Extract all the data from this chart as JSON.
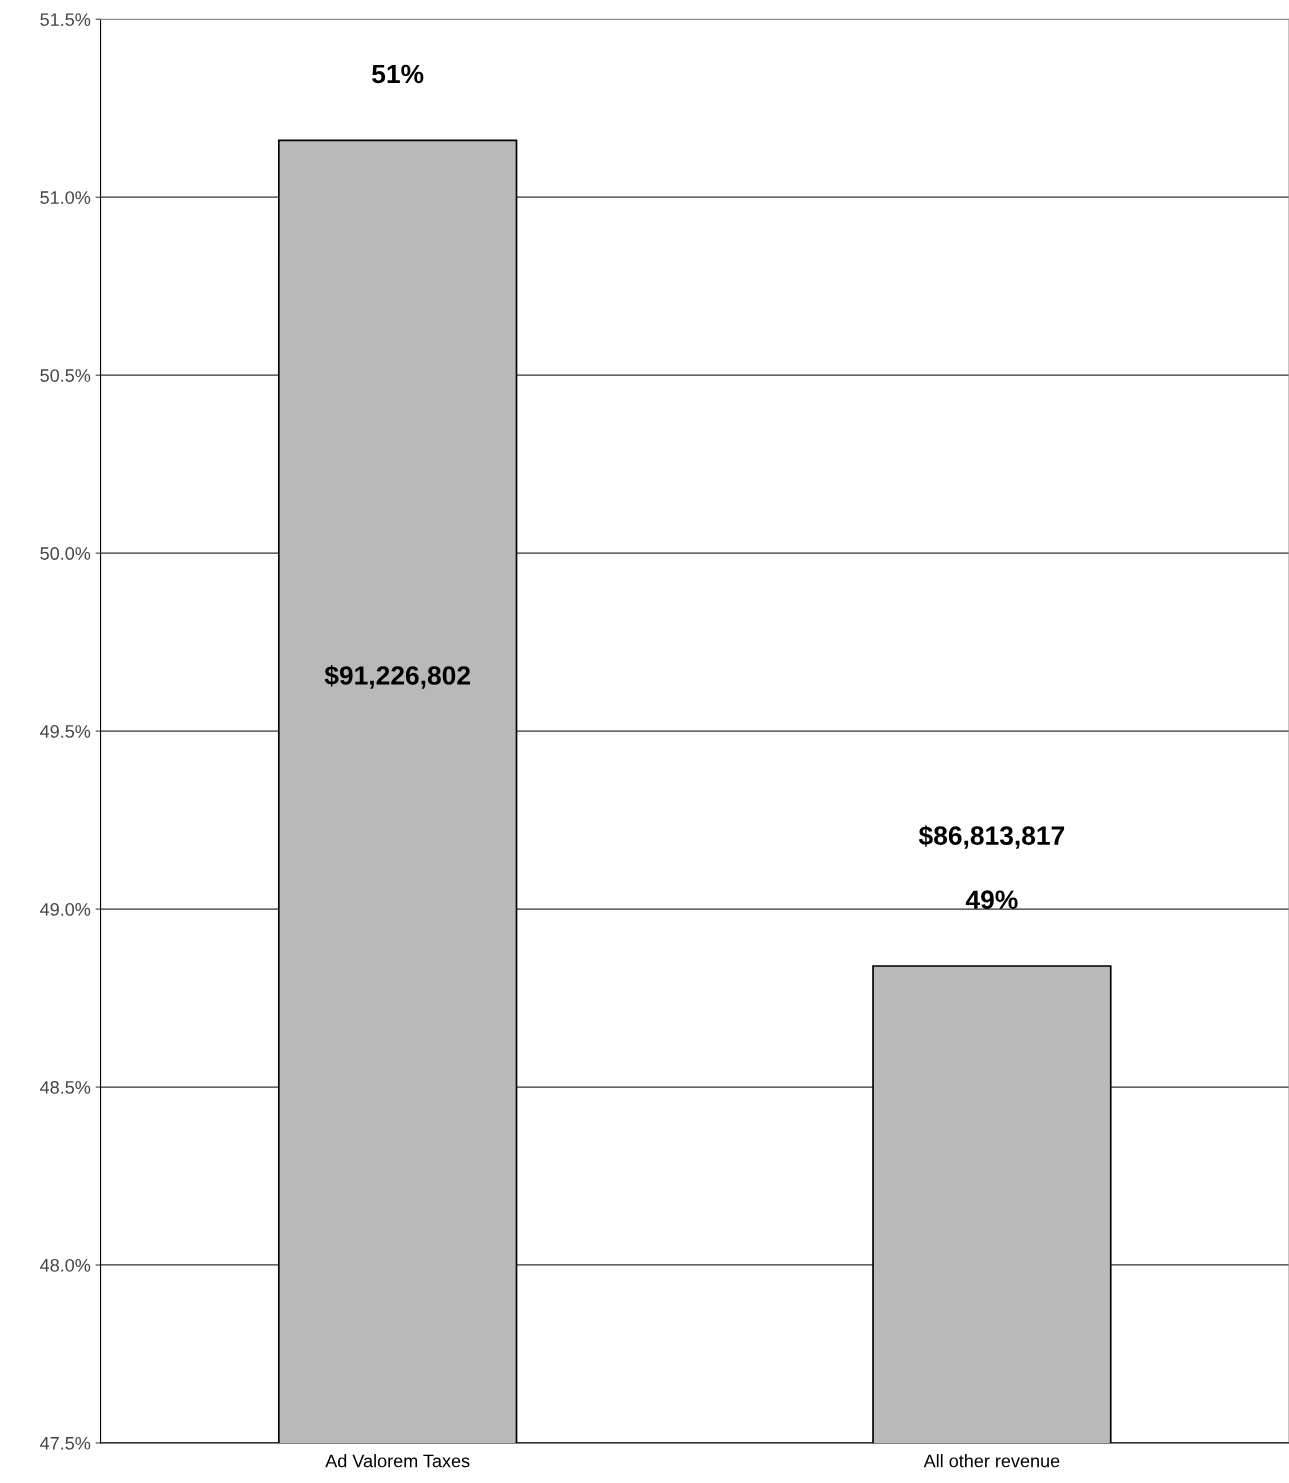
{
  "chart_data": {
    "type": "bar",
    "categories": [
      "Ad Valorem Taxes",
      "All other revenue"
    ],
    "values": [
      51.16,
      48.84
    ],
    "color": "#b9b9b9",
    "ylim": [
      47.5,
      51.5
    ],
    "yticks": [
      {
        "value": 47.5,
        "label": "47.5%"
      },
      {
        "value": 48.0,
        "label": "48.0%"
      },
      {
        "value": 48.5,
        "label": "48.5%"
      },
      {
        "value": 49.0,
        "label": "49.0%"
      },
      {
        "value": 49.5,
        "label": "49.5%"
      },
      {
        "value": 50.0,
        "label": "50.0%"
      },
      {
        "value": 50.5,
        "label": "50.5%"
      },
      {
        "value": 51.0,
        "label": "51.0%"
      },
      {
        "value": 51.5,
        "label": "51.5%"
      }
    ],
    "grid": "y",
    "value_labels": [
      "51%",
      "49%"
    ],
    "annotations": [
      "$91,226,802",
      "$86,813,817"
    ]
  }
}
